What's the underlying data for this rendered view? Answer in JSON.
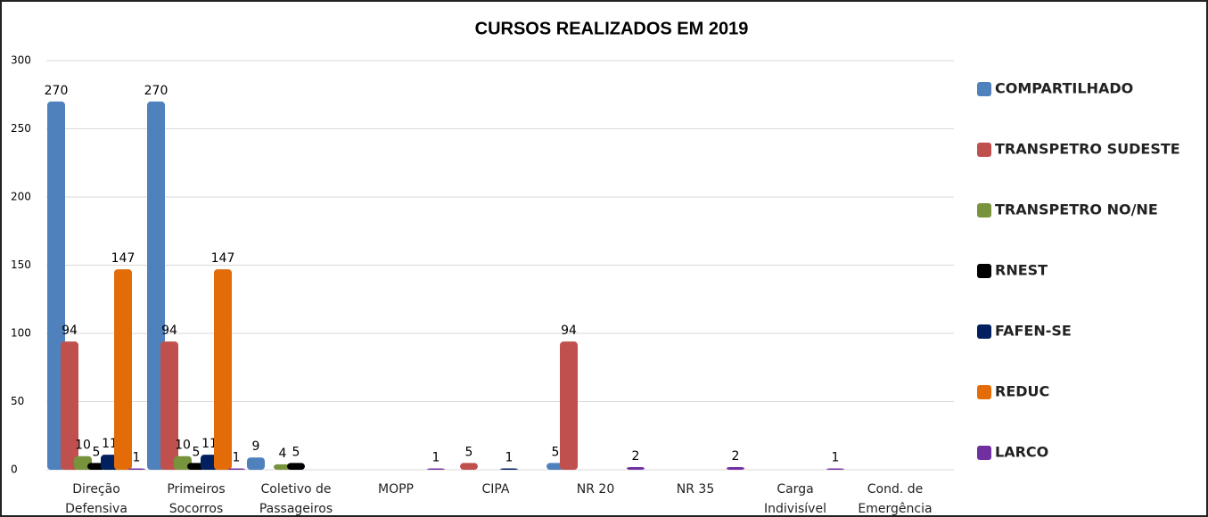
{
  "chart_data": {
    "type": "bar",
    "title": "CURSOS REALIZADOS EM 2019",
    "categories": [
      "Direção\nDefensiva",
      "Primeiros\nSocorros",
      "Coletivo de\nPassageiros",
      "MOPP",
      "CIPA",
      "NR 20",
      "NR 35",
      "Carga\nIndivisível",
      "Cond. de\nEmergência"
    ],
    "series": [
      {
        "name": "COMPARTILHADO",
        "color": "#4f81bd",
        "values": [
          270,
          270,
          9,
          null,
          null,
          5,
          null,
          null,
          null
        ]
      },
      {
        "name": "TRANSPETRO SUDESTE",
        "color": "#c0504d",
        "values": [
          94,
          94,
          null,
          null,
          5,
          94,
          null,
          null,
          null
        ]
      },
      {
        "name": "TRANSPETRO NO/NE",
        "color": "#77933c",
        "values": [
          10,
          10,
          4,
          null,
          null,
          null,
          null,
          null,
          null
        ]
      },
      {
        "name": "RNEST",
        "color": "#000000",
        "values": [
          5,
          5,
          5,
          null,
          null,
          null,
          null,
          null,
          null
        ]
      },
      {
        "name": "FAFEN-SE",
        "color": "#002060",
        "values": [
          11,
          11,
          null,
          null,
          1,
          null,
          null,
          null,
          null
        ]
      },
      {
        "name": "REDUC",
        "color": "#e36c09",
        "values": [
          147,
          147,
          null,
          null,
          null,
          null,
          null,
          null,
          null
        ]
      },
      {
        "name": "LARCO",
        "color": "#7030a0",
        "values": [
          1,
          1,
          null,
          1,
          null,
          2,
          2,
          1,
          null
        ]
      }
    ],
    "ylim": [
      0,
      300
    ],
    "yticks": [
      0,
      50,
      100,
      150,
      200,
      250,
      300
    ],
    "grid": true,
    "legend": "right"
  }
}
